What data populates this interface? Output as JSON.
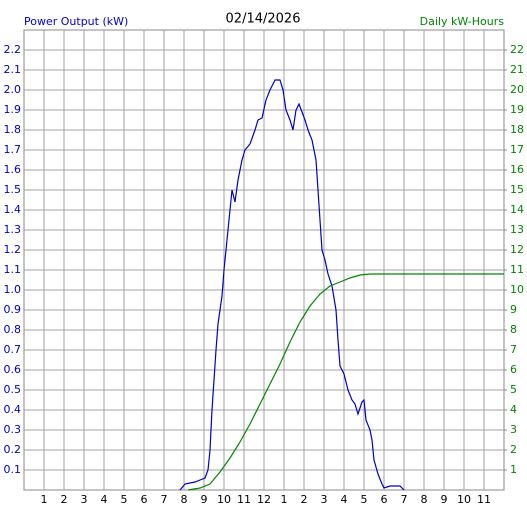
{
  "chart_data": {
    "type": "line",
    "title": "02/14/2026",
    "ylabel": "Power Output (kW)",
    "y2label": "Daily kW-Hours",
    "xlim": [
      0,
      24
    ],
    "ylim": [
      0,
      2.3
    ],
    "y2lim": [
      0,
      23
    ],
    "grid": true,
    "xticks": [
      1,
      2,
      3,
      4,
      5,
      6,
      7,
      8,
      9,
      10,
      11,
      12,
      {
        "value": 13,
        "label": "1"
      },
      {
        "value": 14,
        "label": "2"
      },
      {
        "value": 15,
        "label": "3"
      },
      {
        "value": 16,
        "label": "4"
      },
      {
        "value": 17,
        "label": "5"
      },
      {
        "value": 18,
        "label": "6"
      },
      {
        "value": 19,
        "label": "7"
      },
      {
        "value": 20,
        "label": "8"
      },
      {
        "value": 21,
        "label": "9"
      },
      {
        "value": 22,
        "label": "10"
      },
      {
        "value": 23,
        "label": "11"
      }
    ],
    "yticks": [
      0.1,
      0.2,
      0.3,
      0.4,
      0.5,
      0.6,
      0.7,
      0.8,
      0.9,
      {
        "value": 1,
        "label": "1.0"
      },
      1.1,
      1.2,
      1.3,
      1.4,
      1.5,
      1.6,
      1.7,
      1.8,
      1.9,
      {
        "value": 2,
        "label": "2.0"
      },
      2.1,
      2.2
    ],
    "y2ticks": [
      1,
      2,
      3,
      4,
      5,
      6,
      7,
      8,
      9,
      10,
      11,
      12,
      13,
      14,
      15,
      16,
      17,
      18,
      19,
      20,
      21,
      22
    ],
    "series": [
      {
        "color": "#0000cc",
        "x": [
          7.8,
          8.05,
          8.55,
          8.8,
          9.05,
          9.2,
          9.3,
          9.4,
          9.5,
          9.6,
          9.7,
          9.8,
          9.9,
          10,
          10.1,
          10.2,
          10.3,
          10.4,
          10.55,
          10.7,
          10.8,
          10.9,
          11.05,
          11.3,
          11.55,
          11.7,
          11.9,
          12.1,
          12.3,
          12.55,
          12.8,
          12.95,
          13.1,
          13.3,
          13.45,
          13.6,
          13.75,
          13.9,
          14.05,
          14.2,
          14.4,
          14.6,
          14.7,
          14.8,
          14.9,
          15.05,
          15.2,
          15.4,
          15.6,
          15.7,
          15.8,
          16,
          16.2,
          16.4,
          16.55,
          16.7,
          16.9,
          17,
          17.1,
          17.3,
          17.4,
          17.5,
          17.7,
          17.9,
          18,
          18.3,
          18.8,
          19
        ],
        "values": [
          0,
          0.03,
          0.04,
          0.05,
          0.06,
          0.1,
          0.2,
          0.4,
          0.55,
          0.7,
          0.83,
          0.9,
          0.97,
          1.1,
          1.2,
          1.3,
          1.4,
          1.5,
          1.44,
          1.55,
          1.6,
          1.65,
          1.7,
          1.73,
          1.8,
          1.85,
          1.86,
          1.95,
          2.0,
          2.05,
          2.05,
          2.0,
          1.9,
          1.85,
          1.8,
          1.9,
          1.93,
          1.89,
          1.85,
          1.8,
          1.75,
          1.65,
          1.5,
          1.35,
          1.2,
          1.15,
          1.08,
          1.02,
          0.9,
          0.75,
          0.62,
          0.58,
          0.5,
          0.45,
          0.43,
          0.38,
          0.44,
          0.45,
          0.35,
          0.3,
          0.25,
          0.15,
          0.08,
          0.03,
          0.01,
          0.02,
          0.02,
          0
        ]
      },
      {
        "color": "#008800",
        "axis": "y2",
        "x": [
          8.2,
          8.8,
          9.3,
          9.8,
          10.3,
          10.8,
          11.3,
          11.8,
          12.3,
          12.8,
          13.3,
          13.8,
          14.3,
          14.8,
          15.3,
          15.8,
          16.3,
          16.8,
          17.3,
          24
        ],
        "values": [
          0,
          0.1,
          0.3,
          0.9,
          1.6,
          2.4,
          3.3,
          4.3,
          5.3,
          6.3,
          7.4,
          8.4,
          9.2,
          9.8,
          10.2,
          10.4,
          10.6,
          10.75,
          10.8,
          10.8
        ]
      }
    ]
  }
}
